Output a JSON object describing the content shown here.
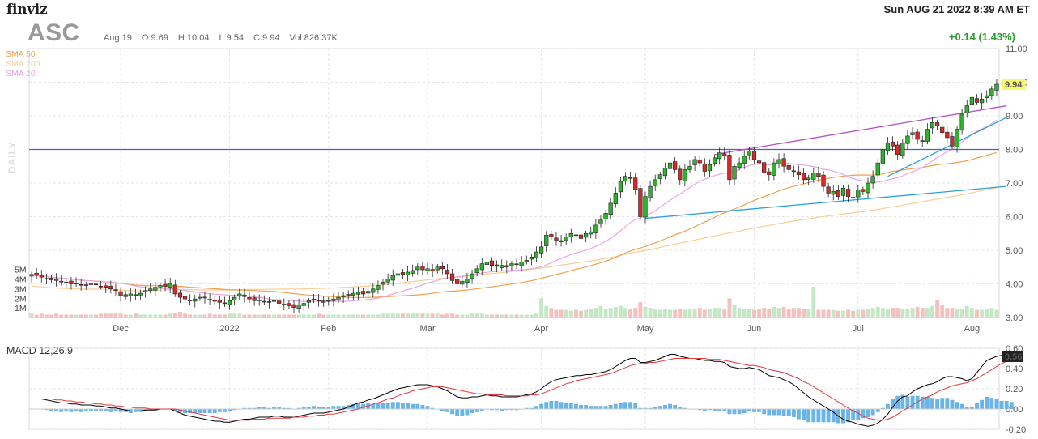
{
  "header": {
    "logo": "finviz",
    "datetime": "Sun AUG 21 2022 8:39 AM ET",
    "ticker": "ASC",
    "date": "Aug 19",
    "open": "O:9.69",
    "high": "H:10.04",
    "low": "L:9.54",
    "close": "C:9.94",
    "volume": "Vol:826.37K",
    "change": "+0.14 (1.43%)"
  },
  "legend": {
    "sma50": "SMA 50",
    "sma200": "SMA 200",
    "sma20": "SMA 20",
    "daily": "DAILY"
  },
  "colors": {
    "up": "#2fb32f",
    "down": "#d62a2a",
    "sma50": "#f0a050",
    "sma200": "#f5cf93",
    "sma20": "#e9a6e0",
    "volume": "#c6e7c6",
    "resistance": "#b44fc8",
    "support": "#2b9fd8",
    "horizontal": "#5a5abf",
    "macd": "#000000",
    "signal": "#e0393e",
    "histogram": "#6ab4e6"
  },
  "price_label": "9.94",
  "macd_label": "MACD 12,26,9",
  "macd_value": "0.56",
  "chart_data": {
    "type": "candlestick",
    "y_ticks": [
      "11.00",
      "10.00",
      "9.00",
      "8.00",
      "7.00",
      "6.00",
      "5.00",
      "4.00",
      "3.00"
    ],
    "ylim": [
      3.0,
      11.0
    ],
    "volume_ticks": [
      "5M",
      "4M",
      "3M",
      "2M",
      "1M"
    ],
    "x_ticks": [
      "Dec",
      "2022",
      "Feb",
      "Mar",
      "Apr",
      "May",
      "Jun",
      "Jul",
      "Aug"
    ],
    "x_tick_index": [
      18,
      40,
      60,
      80,
      103,
      124,
      146,
      167,
      190
    ],
    "macd_ticks": [
      "0.60",
      "0.40",
      "0.20",
      "0.00",
      "-0.20"
    ],
    "macd_ylim": [
      -0.2,
      0.6
    ],
    "horizontal_line": 8.0,
    "closes": [
      4.28,
      4.25,
      4.2,
      4.15,
      4.12,
      4.1,
      4.08,
      4.05,
      4.0,
      4.02,
      3.98,
      3.95,
      4.0,
      3.97,
      3.93,
      3.9,
      3.85,
      3.8,
      3.65,
      3.62,
      3.7,
      3.68,
      3.72,
      3.8,
      3.85,
      3.9,
      3.95,
      3.92,
      4.0,
      3.7,
      3.6,
      3.55,
      3.5,
      3.55,
      3.6,
      3.58,
      3.52,
      3.48,
      3.45,
      3.42,
      3.5,
      3.6,
      3.7,
      3.62,
      3.55,
      3.5,
      3.52,
      3.48,
      3.45,
      3.5,
      3.42,
      3.4,
      3.35,
      3.3,
      3.38,
      3.42,
      3.5,
      3.55,
      3.5,
      3.45,
      3.5,
      3.55,
      3.6,
      3.65,
      3.68,
      3.72,
      3.75,
      3.7,
      3.78,
      3.85,
      3.95,
      4.05,
      4.15,
      4.25,
      4.3,
      4.28,
      4.35,
      4.4,
      4.5,
      4.42,
      4.45,
      4.38,
      4.5,
      4.45,
      4.3,
      4.1,
      4.0,
      4.08,
      4.15,
      4.3,
      4.45,
      4.6,
      4.65,
      4.55,
      4.52,
      4.55,
      4.5,
      4.6,
      4.58,
      4.65,
      4.7,
      4.8,
      4.95,
      5.1,
      5.45,
      5.4,
      5.3,
      5.25,
      5.4,
      5.5,
      5.45,
      5.35,
      5.5,
      5.55,
      5.75,
      5.9,
      6.1,
      6.4,
      6.7,
      7.05,
      7.2,
      7.15,
      6.8,
      6.0,
      6.6,
      6.9,
      7.1,
      7.25,
      7.45,
      7.6,
      7.4,
      7.1,
      7.4,
      7.5,
      7.7,
      7.6,
      7.35,
      7.55,
      7.75,
      7.9,
      7.8,
      7.1,
      7.5,
      7.6,
      7.8,
      7.95,
      7.7,
      7.6,
      7.3,
      7.25,
      7.6,
      7.7,
      7.5,
      7.4,
      7.35,
      7.25,
      7.1,
      7.15,
      7.3,
      7.2,
      6.9,
      6.7,
      6.75,
      6.6,
      6.85,
      6.6,
      6.55,
      6.8,
      6.75,
      7.0,
      7.2,
      7.6,
      8.0,
      8.2,
      8.1,
      7.85,
      8.2,
      8.4,
      8.5,
      8.3,
      8.25,
      8.6,
      8.8,
      8.7,
      8.5,
      8.35,
      8.1,
      8.6,
      9.05,
      9.3,
      9.55,
      9.4,
      9.5,
      9.6,
      9.8,
      9.94
    ],
    "volumes": [
      0.4,
      0.3,
      0.4,
      0.3,
      0.3,
      0.4,
      0.3,
      0.3,
      0.3,
      0.3,
      0.3,
      0.3,
      0.3,
      0.3,
      0.4,
      0.4,
      0.4,
      0.5,
      0.4,
      0.3,
      0.3,
      0.4,
      0.3,
      0.3,
      0.3,
      0.3,
      0.3,
      0.3,
      0.4,
      0.5,
      0.6,
      0.4,
      0.3,
      0.3,
      0.3,
      0.3,
      0.4,
      0.3,
      0.3,
      0.3,
      0.4,
      0.4,
      0.4,
      0.3,
      0.3,
      0.3,
      0.3,
      0.3,
      0.3,
      0.3,
      0.3,
      0.3,
      0.3,
      0.3,
      0.3,
      0.3,
      0.3,
      0.3,
      0.4,
      0.3,
      0.3,
      0.3,
      0.3,
      0.3,
      0.3,
      0.3,
      0.3,
      0.3,
      0.3,
      0.3,
      0.3,
      0.4,
      0.4,
      0.4,
      0.4,
      0.4,
      0.4,
      0.4,
      0.4,
      0.4,
      0.4,
      0.4,
      0.4,
      0.3,
      0.4,
      0.4,
      0.3,
      0.3,
      0.3,
      0.4,
      0.4,
      0.4,
      0.3,
      0.3,
      0.3,
      0.3,
      0.3,
      0.3,
      0.3,
      0.3,
      0.3,
      0.3,
      0.4,
      2.0,
      1.2,
      1.0,
      0.8,
      0.8,
      0.8,
      0.7,
      0.8,
      0.7,
      0.8,
      0.9,
      1.0,
      1.2,
      0.9,
      1.0,
      1.1,
      1.2,
      1.0,
      0.9,
      1.0,
      1.6,
      1.1,
      1.0,
      0.9,
      0.8,
      0.9,
      0.8,
      0.8,
      0.9,
      0.8,
      0.9,
      0.9,
      1.0,
      0.8,
      0.9,
      1.0,
      1.0,
      0.9,
      2.0,
      1.3,
      1.0,
      0.9,
      0.9,
      0.8,
      0.9,
      1.0,
      0.9,
      1.1,
      1.0,
      1.1,
      0.9,
      1.0,
      1.0,
      0.9,
      0.9,
      3.2,
      0.8,
      0.8,
      0.8,
      0.8,
      0.7,
      0.7,
      0.8,
      0.7,
      0.8,
      0.8,
      0.9,
      1.0,
      1.1,
      1.0,
      0.9,
      1.0,
      1.0,
      0.9,
      0.9,
      1.0,
      1.1,
      1.0,
      1.0,
      1.2,
      1.8,
      1.3,
      1.0,
      1.0,
      0.9,
      0.9,
      1.2,
      1.0,
      0.8,
      0.8,
      0.9,
      1.0,
      0.8
    ],
    "macd": [
      0.1,
      0.1,
      0.1,
      0.09,
      0.08,
      0.07,
      0.06,
      0.06,
      0.05,
      0.05,
      0.04,
      0.04,
      0.04,
      0.03,
      0.03,
      0.02,
      0.01,
      0.01,
      0.0,
      -0.01,
      -0.02,
      -0.02,
      -0.02,
      -0.01,
      -0.01,
      -0.01,
      0.0,
      0.0,
      0.0,
      -0.02,
      -0.04,
      -0.06,
      -0.07,
      -0.08,
      -0.09,
      -0.1,
      -0.11,
      -0.12,
      -0.12,
      -0.13,
      -0.13,
      -0.12,
      -0.11,
      -0.1,
      -0.1,
      -0.09,
      -0.08,
      -0.08,
      -0.08,
      -0.07,
      -0.07,
      -0.08,
      -0.08,
      -0.08,
      -0.07,
      -0.06,
      -0.05,
      -0.04,
      -0.04,
      -0.04,
      -0.03,
      -0.02,
      -0.01,
      0.0,
      0.02,
      0.04,
      0.06,
      0.07,
      0.09,
      0.1,
      0.12,
      0.14,
      0.16,
      0.18,
      0.2,
      0.21,
      0.22,
      0.23,
      0.24,
      0.24,
      0.24,
      0.23,
      0.22,
      0.2,
      0.18,
      0.15,
      0.12,
      0.11,
      0.11,
      0.12,
      0.12,
      0.13,
      0.14,
      0.13,
      0.13,
      0.12,
      0.12,
      0.12,
      0.12,
      0.13,
      0.14,
      0.15,
      0.17,
      0.2,
      0.24,
      0.27,
      0.29,
      0.3,
      0.31,
      0.32,
      0.33,
      0.33,
      0.34,
      0.34,
      0.35,
      0.36,
      0.37,
      0.39,
      0.42,
      0.45,
      0.48,
      0.5,
      0.5,
      0.46,
      0.46,
      0.47,
      0.48,
      0.5,
      0.52,
      0.54,
      0.54,
      0.52,
      0.51,
      0.5,
      0.5,
      0.49,
      0.48,
      0.48,
      0.47,
      0.47,
      0.46,
      0.42,
      0.41,
      0.4,
      0.4,
      0.41,
      0.4,
      0.39,
      0.36,
      0.33,
      0.32,
      0.31,
      0.29,
      0.27,
      0.24,
      0.2,
      0.16,
      0.12,
      0.09,
      0.06,
      0.03,
      0.0,
      -0.03,
      -0.07,
      -0.1,
      -0.12,
      -0.13,
      -0.15,
      -0.16,
      -0.17,
      -0.16,
      -0.14,
      -0.1,
      -0.05,
      0.02,
      0.08,
      0.12,
      0.13,
      0.17,
      0.2,
      0.22,
      0.24,
      0.25,
      0.27,
      0.3,
      0.32,
      0.32,
      0.31,
      0.3,
      0.28,
      0.3,
      0.36,
      0.42,
      0.48,
      0.5,
      0.52,
      0.53,
      0.55,
      0.56
    ],
    "signal": [
      0.1,
      0.1,
      0.1,
      0.1,
      0.1,
      0.09,
      0.09,
      0.08,
      0.08,
      0.07,
      0.07,
      0.06,
      0.06,
      0.05,
      0.05,
      0.04,
      0.04,
      0.03,
      0.03,
      0.02,
      0.02,
      0.01,
      0.01,
      0.01,
      0.0,
      0.0,
      0.0,
      0.0,
      0.0,
      0.0,
      -0.01,
      -0.02,
      -0.03,
      -0.04,
      -0.05,
      -0.06,
      -0.07,
      -0.08,
      -0.09,
      -0.1,
      -0.11,
      -0.11,
      -0.11,
      -0.11,
      -0.11,
      -0.1,
      -0.1,
      -0.1,
      -0.09,
      -0.09,
      -0.09,
      -0.09,
      -0.09,
      -0.08,
      -0.08,
      -0.08,
      -0.07,
      -0.07,
      -0.06,
      -0.06,
      -0.05,
      -0.05,
      -0.04,
      -0.03,
      -0.02,
      -0.01,
      0.0,
      0.02,
      0.03,
      0.05,
      0.06,
      0.08,
      0.1,
      0.11,
      0.13,
      0.15,
      0.16,
      0.18,
      0.19,
      0.2,
      0.21,
      0.22,
      0.22,
      0.22,
      0.21,
      0.2,
      0.19,
      0.18,
      0.17,
      0.16,
      0.15,
      0.15,
      0.14,
      0.14,
      0.14,
      0.14,
      0.13,
      0.13,
      0.13,
      0.13,
      0.13,
      0.14,
      0.14,
      0.15,
      0.17,
      0.19,
      0.21,
      0.23,
      0.25,
      0.26,
      0.28,
      0.29,
      0.3,
      0.31,
      0.32,
      0.33,
      0.34,
      0.35,
      0.37,
      0.39,
      0.41,
      0.43,
      0.44,
      0.45,
      0.45,
      0.46,
      0.46,
      0.47,
      0.48,
      0.49,
      0.5,
      0.5,
      0.5,
      0.5,
      0.5,
      0.5,
      0.5,
      0.49,
      0.49,
      0.49,
      0.48,
      0.47,
      0.46,
      0.45,
      0.44,
      0.43,
      0.43,
      0.42,
      0.41,
      0.39,
      0.38,
      0.37,
      0.36,
      0.34,
      0.32,
      0.3,
      0.27,
      0.25,
      0.22,
      0.19,
      0.16,
      0.13,
      0.1,
      0.07,
      0.04,
      0.01,
      -0.02,
      -0.04,
      -0.07,
      -0.09,
      -0.1,
      -0.11,
      -0.11,
      -0.1,
      -0.08,
      -0.05,
      -0.02,
      0.01,
      0.04,
      0.07,
      0.1,
      0.12,
      0.14,
      0.17,
      0.19,
      0.21,
      0.23,
      0.24,
      0.25,
      0.26,
      0.28,
      0.3,
      0.33,
      0.36,
      0.39,
      0.42,
      0.45,
      0.47,
      0.49
    ]
  }
}
